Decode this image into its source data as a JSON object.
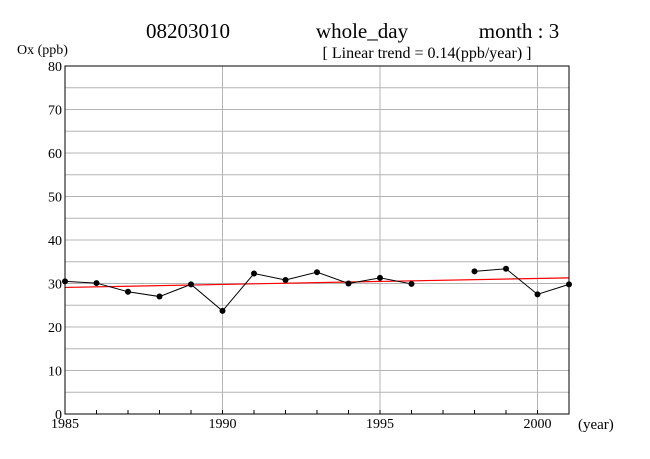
{
  "header": {
    "station": "08203010",
    "period": "whole_day",
    "month": "month : 3",
    "trend": "[ Linear trend = 0.14(ppb/year) ]"
  },
  "chart_data": {
    "type": "line",
    "ylabel": "Ox (ppb)",
    "xlabel": "(year)",
    "xlim": [
      1985,
      2001
    ],
    "ylim": [
      0,
      80
    ],
    "x_ticks": [
      1985,
      1990,
      1995,
      2000
    ],
    "y_ticks": [
      0,
      10,
      20,
      30,
      40,
      50,
      60,
      70,
      80
    ],
    "grid": true,
    "series": [
      {
        "color": "#000000",
        "x": [
          1985,
          1986,
          1987,
          1988,
          1989,
          1990,
          1991,
          1992,
          1993,
          1994,
          1995,
          1996,
          1997,
          1998,
          1999,
          2000,
          2001
        ],
        "y": [
          30.5,
          30.1,
          28.1,
          27.0,
          29.8,
          23.7,
          32.3,
          30.8,
          32.6,
          30.0,
          31.3,
          29.9,
          null,
          32.8,
          33.4,
          27.5,
          29.8
        ]
      }
    ],
    "trend_line": {
      "color": "#ff0000",
      "x": [
        1985,
        2001
      ],
      "y": [
        29.1,
        31.3
      ]
    }
  }
}
